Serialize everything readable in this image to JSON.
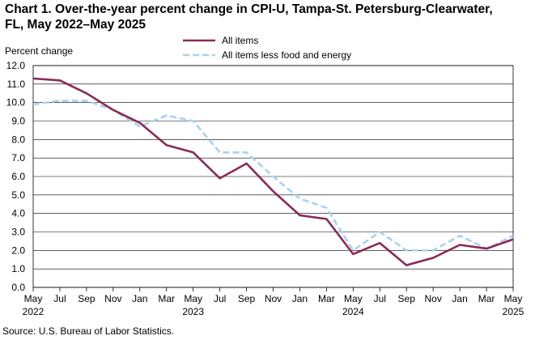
{
  "title_lines": [
    "Chart 1. Over-the-year percent change in CPI-U, Tampa-St. Petersburg-Clearwater,",
    "FL, May 2022–May 2025"
  ],
  "source": "Source: U.S. Bureau of Labor Statistics.",
  "colors": {
    "all_items": "#8b2a56",
    "core": "#a9d2f0",
    "grid": "#000000"
  },
  "chart_data": {
    "type": "line",
    "title": "Over-the-year percent change in CPI-U, Tampa-St. Petersburg-Clearwater, FL, May 2022–May 2025",
    "ylabel": "Percent change",
    "xlabel": "",
    "ylim": [
      0,
      12
    ],
    "yticks": [
      "0.0",
      "1.0",
      "2.0",
      "3.0",
      "4.0",
      "5.0",
      "6.0",
      "7.0",
      "8.0",
      "9.0",
      "10.0",
      "11.0",
      "12.0"
    ],
    "categories": [
      "May",
      "Jul",
      "Sep",
      "Nov",
      "Jan",
      "Mar",
      "May",
      "Jul",
      "Sep",
      "Nov",
      "Jan",
      "Mar",
      "May",
      "Jul",
      "Sep",
      "Nov",
      "Jan",
      "Mar",
      "May"
    ],
    "year_labels": [
      {
        "index": 0,
        "label": "2022"
      },
      {
        "index": 6,
        "label": "2023"
      },
      {
        "index": 12,
        "label": "2024"
      },
      {
        "index": 18,
        "label": "2025"
      }
    ],
    "grid": true,
    "legend_position": "top",
    "series": [
      {
        "name": "All items",
        "style": "solid",
        "values": [
          11.3,
          11.2,
          10.5,
          9.6,
          8.9,
          7.7,
          7.3,
          5.9,
          6.7,
          5.2,
          3.9,
          3.7,
          1.8,
          2.4,
          1.2,
          1.6,
          2.3,
          2.1,
          2.6
        ]
      },
      {
        "name": "All items less food and energy",
        "style": "dashed",
        "values": [
          9.9,
          10.1,
          10.1,
          9.6,
          8.7,
          9.3,
          9.0,
          7.3,
          7.3,
          6.0,
          4.8,
          4.3,
          2.0,
          3.0,
          2.0,
          2.0,
          2.8,
          2.1,
          2.8
        ]
      }
    ]
  }
}
